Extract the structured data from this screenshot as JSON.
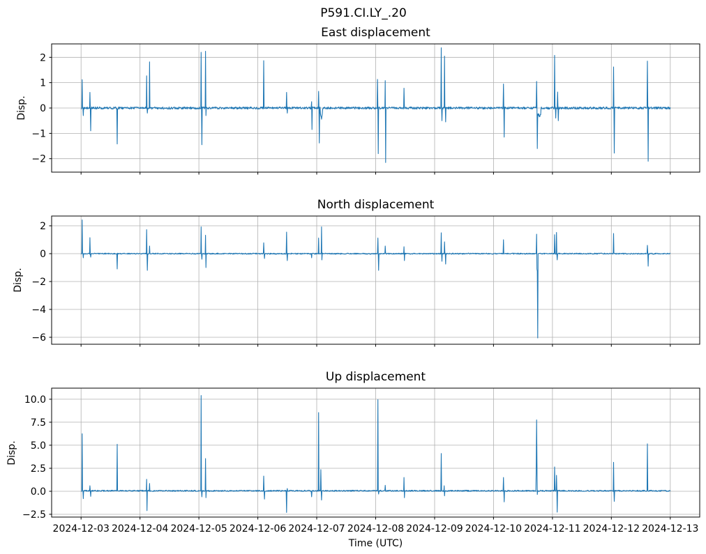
{
  "chart_data": {
    "type": "line",
    "figure_title": "P591.CI.LY_.20",
    "line_color": "#1f77b4",
    "grid_color": "#b0b0b0",
    "spine_color": "#000000",
    "x_axis": {
      "label": "Time (UTC)",
      "tick_labels": [
        "2024-12-03",
        "2024-12-04",
        "2024-12-05",
        "2024-12-06",
        "2024-12-07",
        "2024-12-08",
        "2024-12-09",
        "2024-12-10",
        "2024-12-11",
        "2024-12-12",
        "2024-12-13"
      ],
      "tick_days": [
        0,
        1,
        2,
        3,
        4,
        5,
        6,
        7,
        8,
        9,
        10
      ],
      "xlim_days": [
        -0.5,
        10.5
      ],
      "data_range_days": [
        0,
        10
      ]
    },
    "charts": [
      {
        "title": "East displacement",
        "ylabel": "Disp.",
        "ytick_values": [
          2,
          1,
          0,
          -1,
          -2
        ],
        "ytick_labels": [
          "2",
          "1",
          "0",
          "−1",
          "−2"
        ],
        "ylim": [
          -2.53,
          2.53
        ],
        "baseline": 0,
        "noise": 0.045,
        "spikes": [
          [
            0.02,
            1.12
          ],
          [
            0.035,
            -0.3
          ],
          [
            0.15,
            0.62
          ],
          [
            0.16,
            -0.9
          ],
          [
            0.615,
            -1.42
          ],
          [
            1.11,
            1.27
          ],
          [
            1.125,
            -0.2
          ],
          [
            1.16,
            1.82
          ],
          [
            2.04,
            2.2
          ],
          [
            2.05,
            -1.45
          ],
          [
            2.11,
            2.24
          ],
          [
            2.12,
            -0.3
          ],
          [
            3.1,
            1.87
          ],
          [
            3.49,
            0.62
          ],
          [
            3.5,
            -0.2
          ],
          [
            3.91,
            0.25
          ],
          [
            3.92,
            -0.85
          ],
          [
            4.03,
            0.66
          ],
          [
            4.045,
            -1.38
          ],
          [
            4.08,
            -0.45,
            0.04
          ],
          [
            5.03,
            1.13
          ],
          [
            5.045,
            -1.8
          ],
          [
            5.16,
            1.08
          ],
          [
            5.17,
            -2.15
          ],
          [
            5.48,
            0.78
          ],
          [
            6.11,
            2.38
          ],
          [
            6.125,
            -0.5
          ],
          [
            6.17,
            2.05
          ],
          [
            6.185,
            -0.55
          ],
          [
            7.17,
            0.95
          ],
          [
            7.18,
            -1.15
          ],
          [
            7.73,
            1.05
          ],
          [
            7.745,
            -1.6
          ],
          [
            7.775,
            -0.35,
            0.055
          ],
          [
            8.04,
            2.08
          ],
          [
            8.055,
            -0.4
          ],
          [
            8.09,
            0.63
          ],
          [
            8.1,
            -0.5
          ],
          [
            9.04,
            1.62
          ],
          [
            9.05,
            -1.78
          ],
          [
            9.615,
            1.85
          ],
          [
            9.625,
            -2.1
          ]
        ]
      },
      {
        "title": "North displacement",
        "ylabel": "Disp.",
        "ytick_values": [
          2,
          0,
          -2,
          -4,
          -6
        ],
        "ytick_labels": [
          "2",
          "0",
          "−2",
          "−4",
          "−6"
        ],
        "ylim": [
          -6.5,
          2.7
        ],
        "baseline": 0,
        "noise": 0.04,
        "spikes": [
          [
            0.02,
            2.42
          ],
          [
            0.035,
            -0.3
          ],
          [
            0.15,
            1.15
          ],
          [
            0.16,
            -0.25
          ],
          [
            0.615,
            -1.1
          ],
          [
            1.11,
            1.72
          ],
          [
            1.125,
            -1.2
          ],
          [
            1.16,
            0.55
          ],
          [
            2.04,
            1.92
          ],
          [
            2.05,
            -0.4
          ],
          [
            2.11,
            1.32
          ],
          [
            2.12,
            -1.0
          ],
          [
            3.1,
            0.78
          ],
          [
            3.11,
            -0.35
          ],
          [
            3.49,
            1.55
          ],
          [
            3.5,
            -0.5
          ],
          [
            3.91,
            -0.3
          ],
          [
            4.03,
            1.12
          ],
          [
            4.08,
            1.92
          ],
          [
            4.09,
            -0.45
          ],
          [
            5.04,
            1.12
          ],
          [
            5.05,
            -1.2
          ],
          [
            5.16,
            0.55
          ],
          [
            5.48,
            0.5
          ],
          [
            5.49,
            -0.5
          ],
          [
            6.11,
            1.5
          ],
          [
            6.125,
            -0.55
          ],
          [
            6.17,
            0.85
          ],
          [
            6.185,
            -0.75
          ],
          [
            7.17,
            1.0
          ],
          [
            7.73,
            1.4
          ],
          [
            7.74,
            -1.7,
            0.018
          ],
          [
            7.75,
            -6.05
          ],
          [
            8.04,
            1.36
          ],
          [
            8.07,
            1.52
          ],
          [
            8.08,
            -0.45
          ],
          [
            9.04,
            1.45
          ],
          [
            9.615,
            0.6
          ],
          [
            9.625,
            -0.9
          ]
        ]
      },
      {
        "title": "Up displacement",
        "ylabel": "Disp.",
        "ytick_values": [
          10,
          7.5,
          5,
          2.5,
          0,
          -2.5
        ],
        "ytick_labels": [
          "10.0",
          "7.5",
          "5.0",
          "2.5",
          "0.0",
          "−2.5"
        ],
        "ylim": [
          -2.8,
          11.2
        ],
        "baseline": 0.05,
        "noise": 0.07,
        "spikes": [
          [
            0.02,
            6.25
          ],
          [
            0.04,
            -0.8
          ],
          [
            0.15,
            0.6
          ],
          [
            0.16,
            -0.55
          ],
          [
            0.615,
            5.1
          ],
          [
            1.11,
            1.3
          ],
          [
            1.12,
            -2.1
          ],
          [
            1.16,
            0.85
          ],
          [
            2.04,
            10.4
          ],
          [
            2.05,
            -0.6
          ],
          [
            2.11,
            3.55
          ],
          [
            2.12,
            -0.7
          ],
          [
            3.1,
            1.65
          ],
          [
            3.11,
            -0.85
          ],
          [
            3.49,
            -2.3
          ],
          [
            3.5,
            0.3
          ],
          [
            3.91,
            -0.6
          ],
          [
            4.03,
            8.55
          ],
          [
            4.07,
            2.35
          ],
          [
            4.08,
            -0.95
          ],
          [
            5.04,
            9.95
          ],
          [
            5.05,
            -0.3
          ],
          [
            5.16,
            0.65
          ],
          [
            5.48,
            1.5
          ],
          [
            5.49,
            -0.7
          ],
          [
            6.11,
            4.1
          ],
          [
            6.16,
            0.6
          ],
          [
            6.17,
            -0.5
          ],
          [
            7.17,
            1.5
          ],
          [
            7.18,
            -1.15
          ],
          [
            7.73,
            7.75
          ],
          [
            7.735,
            4.3,
            0.022
          ],
          [
            7.745,
            -0.35
          ],
          [
            8.04,
            2.65
          ],
          [
            8.07,
            1.74
          ],
          [
            8.08,
            -2.27
          ],
          [
            9.04,
            3.15
          ],
          [
            9.05,
            -1.1
          ],
          [
            9.615,
            5.15
          ]
        ]
      }
    ]
  }
}
